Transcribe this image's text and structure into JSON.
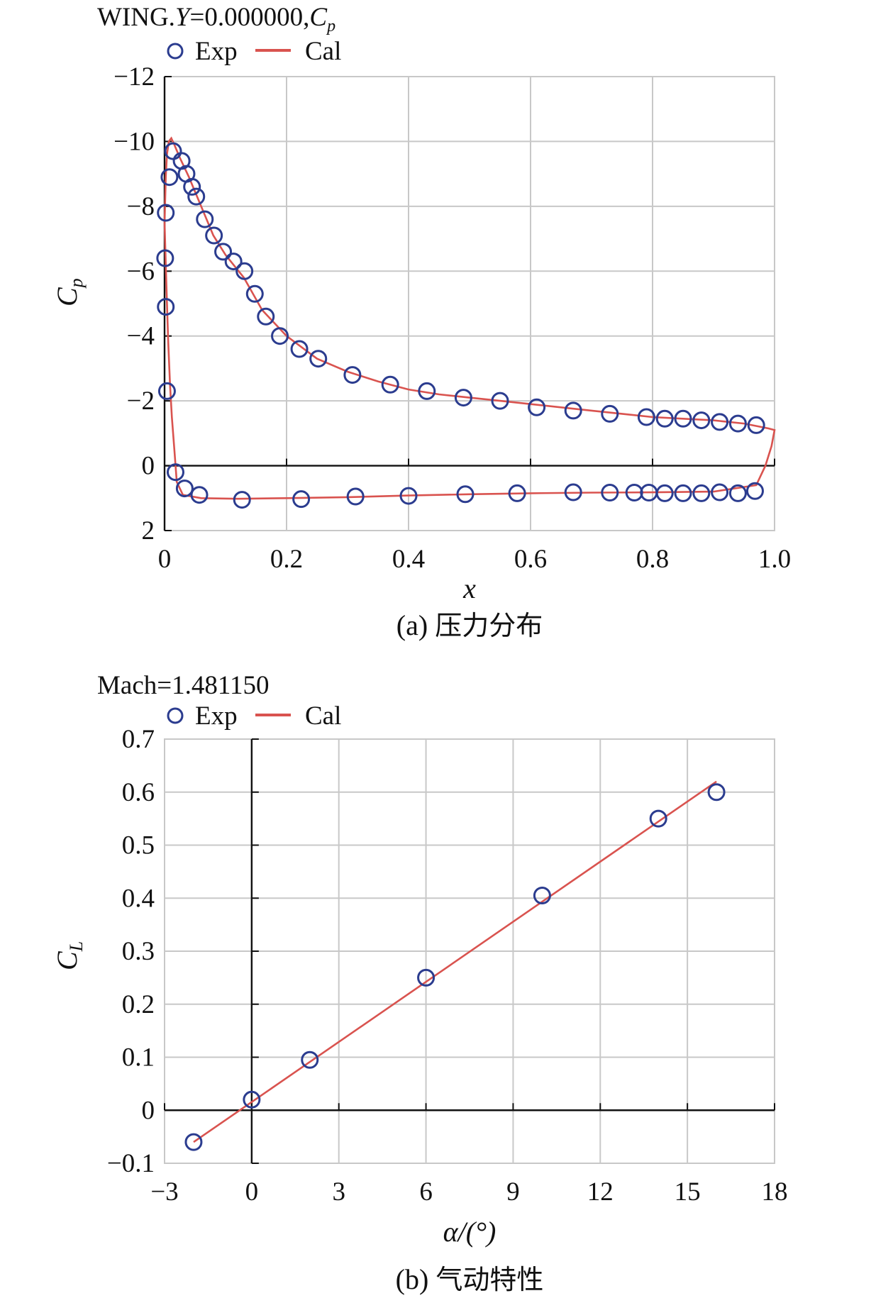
{
  "chart_data": [
    {
      "type": "scatter",
      "header": "WING.",
      "header_var": "Y",
      "header_val": "=0.000000,",
      "header_cp": "C",
      "header_cp_sub": "p",
      "legend": {
        "exp": "Exp",
        "cal": "Cal"
      },
      "xlabel": "x",
      "ylabel": "C",
      "ylabel_sub": "p",
      "xlim": [
        0,
        1.0
      ],
      "ylim": [
        2,
        -12
      ],
      "y_inverted": true,
      "xticks": [
        "0",
        "0.2",
        "0.4",
        "0.6",
        "0.8",
        "1.0"
      ],
      "xtick_values": [
        0,
        0.2,
        0.4,
        0.6,
        0.8,
        1.0
      ],
      "yticks": [
        "−12",
        "−10",
        "−8",
        "−6",
        "−4",
        "−2",
        "0",
        "2"
      ],
      "ytick_values": [
        -12,
        -10,
        -8,
        -6,
        -4,
        -2,
        0,
        2
      ],
      "caption_label": "(a)",
      "caption_text": "压力分布",
      "series": [
        {
          "name": "Exp",
          "style": "circle",
          "x": [
            0.004,
            0.002,
            0.001,
            0.002,
            0.008,
            0.014,
            0.028,
            0.036,
            0.045,
            0.052,
            0.066,
            0.081,
            0.096,
            0.113,
            0.131,
            0.148,
            0.166,
            0.189,
            0.221,
            0.252,
            0.308,
            0.37,
            0.43,
            0.49,
            0.55,
            0.61,
            0.67,
            0.73,
            0.79,
            0.82,
            0.85,
            0.88,
            0.91,
            0.94,
            0.97,
            0.018,
            0.033,
            0.057,
            0.127,
            0.224,
            0.313,
            0.4,
            0.493,
            0.578,
            0.67,
            0.73,
            0.77,
            0.794,
            0.82,
            0.85,
            0.88,
            0.91,
            0.94,
            0.968
          ],
          "y": [
            -2.3,
            -4.9,
            -6.4,
            -7.8,
            -8.9,
            -9.7,
            -9.4,
            -9.0,
            -8.6,
            -8.3,
            -7.6,
            -7.1,
            -6.6,
            -6.3,
            -6.0,
            -5.3,
            -4.6,
            -4.0,
            -3.6,
            -3.3,
            -2.8,
            -2.5,
            -2.3,
            -2.1,
            -2.0,
            -1.8,
            -1.7,
            -1.6,
            -1.5,
            -1.45,
            -1.45,
            -1.4,
            -1.35,
            -1.3,
            -1.25,
            0.2,
            0.7,
            0.9,
            1.05,
            1.03,
            0.95,
            0.93,
            0.88,
            0.85,
            0.82,
            0.83,
            0.83,
            0.83,
            0.85,
            0.85,
            0.85,
            0.82,
            0.85,
            0.78
          ]
        },
        {
          "name": "Cal",
          "style": "line",
          "x": [
            0.0,
            0.002,
            0.004,
            0.007,
            0.011,
            0.016,
            0.025,
            0.04,
            0.06,
            0.08,
            0.1,
            0.13,
            0.16,
            0.2,
            0.25,
            0.3,
            0.35,
            0.4,
            0.45,
            0.5,
            0.55,
            0.6,
            0.65,
            0.7,
            0.75,
            0.8,
            0.85,
            0.9,
            0.95,
            0.99,
            1.0,
            0.995,
            0.985,
            0.97,
            0.9,
            0.8,
            0.7,
            0.6,
            0.5,
            0.4,
            0.3,
            0.2,
            0.12,
            0.06,
            0.03,
            0.02,
            0.016,
            0.012,
            0.009,
            0.006,
            0.004,
            0.002,
            0.0
          ],
          "y": [
            -7.5,
            -8.9,
            -9.6,
            -10.0,
            -10.1,
            -9.9,
            -9.5,
            -8.9,
            -8.0,
            -7.1,
            -6.5,
            -5.8,
            -4.8,
            -4.0,
            -3.3,
            -2.9,
            -2.6,
            -2.35,
            -2.2,
            -2.1,
            -2.0,
            -1.9,
            -1.8,
            -1.7,
            -1.6,
            -1.5,
            -1.45,
            -1.4,
            -1.3,
            -1.15,
            -1.1,
            -0.6,
            0.0,
            0.6,
            0.8,
            0.82,
            0.83,
            0.85,
            0.88,
            0.92,
            0.97,
            1.0,
            1.02,
            1.0,
            0.9,
            0.5,
            -0.5,
            -1.5,
            -2.5,
            -3.8,
            -5.0,
            -6.2,
            -7.5
          ]
        }
      ]
    },
    {
      "type": "scatter",
      "header": "Mach=1.481150",
      "legend": {
        "exp": "Exp",
        "cal": "Cal"
      },
      "xlabel": "α/(°)",
      "ylabel": "C",
      "ylabel_sub": "L",
      "xlim": [
        -3,
        18
      ],
      "ylim": [
        -0.1,
        0.7
      ],
      "xticks": [
        "−3",
        "0",
        "3",
        "6",
        "9",
        "12",
        "15",
        "18"
      ],
      "xtick_values": [
        -3,
        0,
        3,
        6,
        9,
        12,
        15,
        18
      ],
      "yticks": [
        "−0.1",
        "0",
        "0.1",
        "0.2",
        "0.3",
        "0.4",
        "0.5",
        "0.6",
        "0.7"
      ],
      "ytick_values": [
        -0.1,
        0,
        0.1,
        0.2,
        0.3,
        0.4,
        0.5,
        0.6,
        0.7
      ],
      "caption_label": "(b)",
      "caption_text": "气动特性",
      "series": [
        {
          "name": "Exp",
          "style": "circle",
          "x": [
            -2,
            0,
            2,
            6,
            10,
            14,
            16
          ],
          "y": [
            -0.06,
            0.02,
            0.095,
            0.25,
            0.405,
            0.55,
            0.6
          ]
        },
        {
          "name": "Cal",
          "style": "line",
          "x": [
            -2,
            16
          ],
          "y": [
            -0.06,
            0.62
          ]
        }
      ]
    }
  ]
}
